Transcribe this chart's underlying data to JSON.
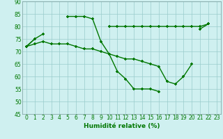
{
  "x": [
    0,
    1,
    2,
    3,
    4,
    5,
    6,
    7,
    8,
    9,
    10,
    11,
    12,
    13,
    14,
    15,
    16,
    17,
    18,
    19,
    20,
    21,
    22,
    23
  ],
  "line1": [
    72,
    75,
    77,
    null,
    null,
    84,
    84,
    84,
    83,
    74,
    69,
    62,
    59,
    55,
    55,
    55,
    54,
    null,
    null,
    null,
    null,
    79,
    81,
    null
  ],
  "line2": [
    72,
    75,
    null,
    null,
    null,
    null,
    null,
    null,
    null,
    null,
    80,
    80,
    80,
    80,
    80,
    80,
    80,
    80,
    80,
    80,
    80,
    80,
    81,
    null
  ],
  "line3": [
    72,
    73,
    74,
    73,
    73,
    73,
    72,
    71,
    71,
    70,
    69,
    68,
    67,
    67,
    66,
    65,
    64,
    58,
    57,
    60,
    65,
    null,
    null,
    null
  ],
  "background_color": "#cff0f0",
  "grid_color": "#99cccc",
  "line_color": "#007700",
  "marker": "+",
  "xlabel": "Humidité relative (%)",
  "ylim": [
    45,
    90
  ],
  "xlim_min": -0.5,
  "xlim_max": 23.5,
  "yticks": [
    45,
    50,
    55,
    60,
    65,
    70,
    75,
    80,
    85,
    90
  ],
  "xticks": [
    0,
    1,
    2,
    3,
    4,
    5,
    6,
    7,
    8,
    9,
    10,
    11,
    12,
    13,
    14,
    15,
    16,
    17,
    18,
    19,
    20,
    21,
    22,
    23
  ],
  "tick_fontsize": 5.5,
  "xlabel_fontsize": 6.5,
  "marker_size": 3.5,
  "line_width": 1.0
}
